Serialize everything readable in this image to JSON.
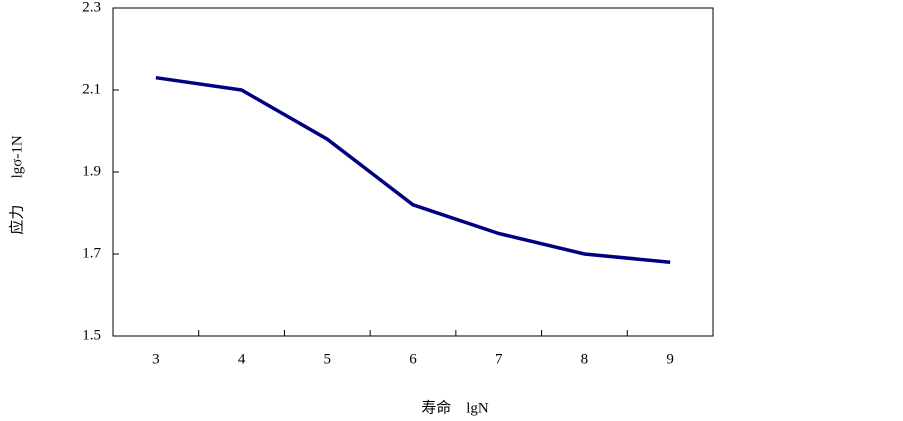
{
  "chart_data": {
    "type": "line",
    "xlabel": "寿命    lgN",
    "ylabel": "应力       lgσ-1N",
    "categories": [
      "3",
      "4",
      "5",
      "6",
      "7",
      "8",
      "9"
    ],
    "series": [
      {
        "name": "lgσ-1N",
        "color": "#000080",
        "values": [
          2.13,
          2.1,
          1.98,
          1.82,
          1.75,
          1.7,
          1.68
        ]
      }
    ],
    "ylim": [
      1.5,
      2.3
    ],
    "yticks": [
      1.5,
      1.7,
      1.9,
      2.1,
      2.3
    ],
    "grid": false
  }
}
